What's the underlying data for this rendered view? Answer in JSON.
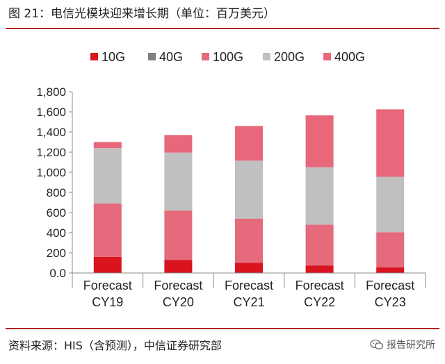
{
  "title": "图 21：电信光模块迎来增长期（单位：百万美元）",
  "source": "资料来源：HIS（含预测），中信证券研究部",
  "watermark": "报告研究所",
  "colors": {
    "rule": "#b22222",
    "10G": "#d9141e",
    "40G": "#7f7f7f",
    "100G": "#e46a7c",
    "200G": "#c0c0c0",
    "400G": "#e8677a"
  },
  "chart_data": {
    "type": "bar",
    "stacked": true,
    "categories": [
      [
        "Forecast",
        "CY19"
      ],
      [
        "Forecast",
        "CY20"
      ],
      [
        "Forecast",
        "CY21"
      ],
      [
        "Forecast",
        "CY22"
      ],
      [
        "Forecast",
        "CY23"
      ]
    ],
    "series": [
      {
        "name": "10G",
        "values": [
          160,
          130,
          100,
          75,
          55
        ]
      },
      {
        "name": "40G",
        "values": [
          0,
          0,
          0,
          0,
          0
        ]
      },
      {
        "name": "100G",
        "values": [
          530,
          490,
          440,
          405,
          350
        ]
      },
      {
        "name": "200G",
        "values": [
          550,
          575,
          575,
          570,
          550
        ]
      },
      {
        "name": "400G",
        "values": [
          60,
          175,
          345,
          515,
          670
        ]
      }
    ],
    "ylim": [
      0,
      1800
    ],
    "yticks": [
      "0.0",
      "200",
      "400",
      "600",
      "800",
      "1,000",
      "1,200",
      "1,400",
      "1,600",
      "1,800"
    ],
    "legend": "top",
    "grid": false
  }
}
